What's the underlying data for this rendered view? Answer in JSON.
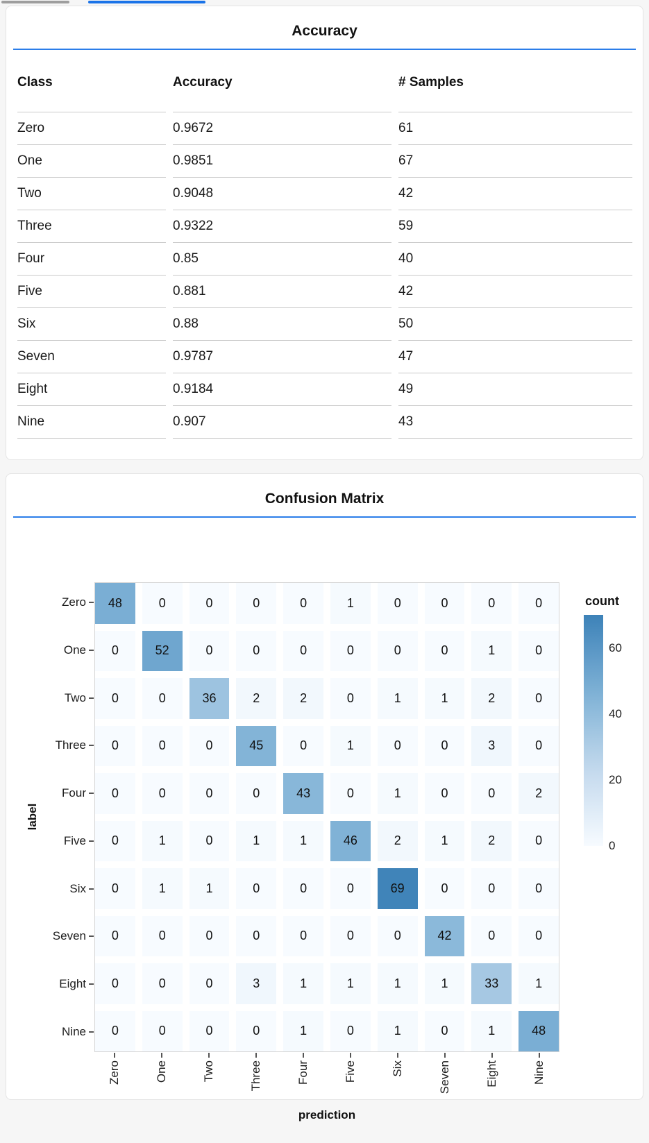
{
  "page": {
    "background": "#f6f6f6"
  },
  "tabbar": {
    "inactive_indicator_color": "#9e9e9e",
    "active_indicator_color": "#1a73e8"
  },
  "accuracy_card": {
    "title": "Accuracy",
    "rule_color": "#2b7de9",
    "table": {
      "columns": [
        "Class",
        "Accuracy",
        "# Samples"
      ],
      "rows": [
        [
          "Zero",
          "0.9672",
          "61"
        ],
        [
          "One",
          "0.9851",
          "67"
        ],
        [
          "Two",
          "0.9048",
          "42"
        ],
        [
          "Three",
          "0.9322",
          "59"
        ],
        [
          "Four",
          "0.85",
          "40"
        ],
        [
          "Five",
          "0.881",
          "42"
        ],
        [
          "Six",
          "0.88",
          "50"
        ],
        [
          "Seven",
          "0.9787",
          "47"
        ],
        [
          "Eight",
          "0.9184",
          "49"
        ],
        [
          "Nine",
          "0.907",
          "43"
        ]
      ]
    }
  },
  "matrix_card": {
    "title": "Confusion Matrix",
    "rule_color": "#2b7de9"
  },
  "chart_data": {
    "type": "heatmap",
    "title": "Confusion Matrix",
    "xlabel": "prediction",
    "ylabel": "label",
    "categories": [
      "Zero",
      "One",
      "Two",
      "Three",
      "Four",
      "Five",
      "Six",
      "Seven",
      "Eight",
      "Nine"
    ],
    "matrix": [
      [
        48,
        0,
        0,
        0,
        0,
        1,
        0,
        0,
        0,
        0
      ],
      [
        0,
        52,
        0,
        0,
        0,
        0,
        0,
        0,
        1,
        0
      ],
      [
        0,
        0,
        36,
        2,
        2,
        0,
        1,
        1,
        2,
        0
      ],
      [
        0,
        0,
        0,
        45,
        0,
        1,
        0,
        0,
        3,
        0
      ],
      [
        0,
        0,
        0,
        0,
        43,
        0,
        1,
        0,
        0,
        2
      ],
      [
        0,
        1,
        0,
        1,
        1,
        46,
        2,
        1,
        2,
        0
      ],
      [
        0,
        1,
        1,
        0,
        0,
        0,
        69,
        0,
        0,
        0
      ],
      [
        0,
        0,
        0,
        0,
        0,
        0,
        0,
        42,
        0,
        0
      ],
      [
        0,
        0,
        0,
        3,
        1,
        1,
        1,
        1,
        33,
        1
      ],
      [
        0,
        0,
        0,
        0,
        1,
        0,
        1,
        0,
        1,
        48
      ]
    ],
    "legend": {
      "title": "count",
      "ticks": [
        0,
        20,
        40,
        60
      ],
      "domain": [
        0,
        70
      ],
      "position": "right",
      "grid": false
    },
    "colors": {
      "ramp": [
        [
          0.0,
          "#f7fbff"
        ],
        [
          0.33,
          "#c3d9ed"
        ],
        [
          0.66,
          "#7fb2d6"
        ],
        [
          1.0,
          "#3d82b8"
        ]
      ]
    }
  }
}
